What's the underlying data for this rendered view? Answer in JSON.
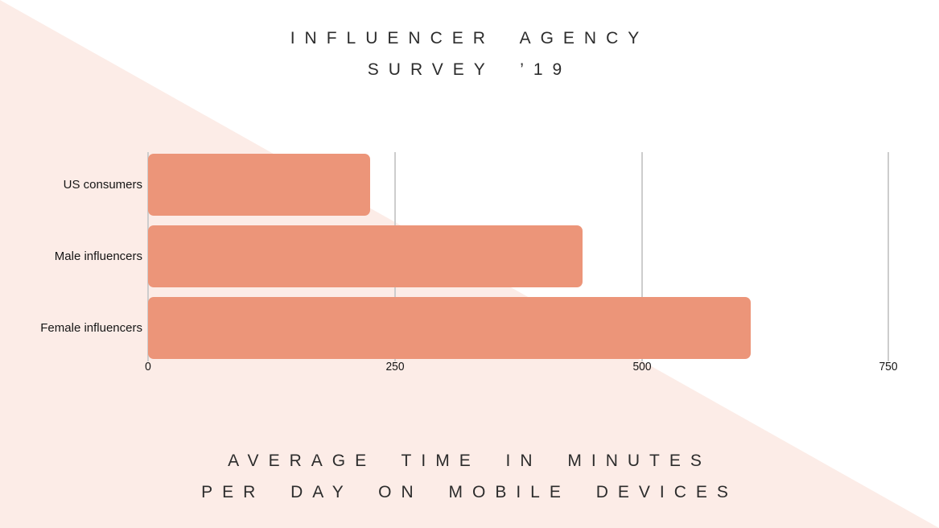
{
  "chart_data": {
    "type": "bar",
    "orientation": "horizontal",
    "title": "INFLUENCER AGENCY SURVEY ’19",
    "title_lines": [
      "INFLUENCER AGENCY",
      "SURVEY ’19"
    ],
    "caption": "AVERAGE TIME IN MINUTES PER DAY ON MOBILE DEVICES",
    "caption_lines": [
      "AVERAGE TIME IN MINUTES",
      "PER DAY ON MOBILE DEVICES"
    ],
    "categories": [
      "US consumers",
      "Male influencers",
      "Female influencers"
    ],
    "values": [
      225,
      440,
      610
    ],
    "value_unit": "minutes per day",
    "x_ticks": [
      "0",
      "250",
      "500",
      "750"
    ],
    "x_tick_values": [
      0,
      250,
      500,
      750
    ],
    "xlim": [
      0,
      790
    ],
    "grid": "vertical-gridlines",
    "legend": "none"
  },
  "theme": {
    "bar_color": "#EC9579",
    "gridline_color": "#CDCDCD",
    "triangle_color": "#FCECE7",
    "background_color": "#FFFFFF",
    "heading_text_color": "#2C2C2C",
    "axis_text_color": "#161616"
  }
}
